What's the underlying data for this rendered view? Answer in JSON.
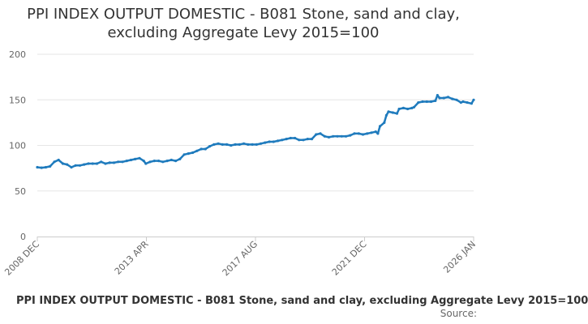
{
  "chart_data": {
    "type": "line",
    "title_line1": "PPI INDEX OUTPUT DOMESTIC - B081 Stone, sand and clay,",
    "title_line2": "excluding Aggregate Levy 2015=100",
    "xlabel": "",
    "ylabel": "",
    "ylim": [
      0,
      200
    ],
    "yticks": [
      "0",
      "50",
      "100",
      "150",
      "200"
    ],
    "xticks": [
      "2008 DEC",
      "2013 APR",
      "2017 AUG",
      "2021 DEC",
      "2026 JAN"
    ],
    "grid": true,
    "legend": "none",
    "series_color": "#1f7bbd",
    "footer_caption": "PPI INDEX OUTPUT DOMESTIC - B081 Stone, sand and clay, excluding Aggregate Levy 2015=100",
    "source_label": "Source:",
    "series": [
      {
        "points": [
          [
            "2008-12",
            76
          ],
          [
            "2009-02",
            75.5
          ],
          [
            "2009-04",
            76
          ],
          [
            "2009-06",
            77
          ],
          [
            "2009-08",
            82
          ],
          [
            "2009-10",
            84
          ],
          [
            "2009-12",
            80
          ],
          [
            "2010-02",
            79
          ],
          [
            "2010-04",
            76
          ],
          [
            "2010-06",
            78
          ],
          [
            "2010-08",
            78
          ],
          [
            "2010-10",
            79
          ],
          [
            "2010-12",
            80
          ],
          [
            "2011-02",
            80
          ],
          [
            "2011-04",
            80
          ],
          [
            "2011-06",
            82
          ],
          [
            "2011-08",
            80
          ],
          [
            "2011-10",
            81
          ],
          [
            "2011-12",
            81
          ],
          [
            "2012-02",
            82
          ],
          [
            "2012-04",
            82
          ],
          [
            "2012-06",
            83
          ],
          [
            "2012-08",
            84
          ],
          [
            "2012-10",
            85
          ],
          [
            "2012-12",
            86
          ],
          [
            "2013-02",
            83
          ],
          [
            "2013-03",
            80
          ],
          [
            "2013-05",
            82
          ],
          [
            "2013-07",
            83
          ],
          [
            "2013-09",
            83
          ],
          [
            "2013-11",
            82
          ],
          [
            "2014-01",
            83
          ],
          [
            "2014-03",
            84
          ],
          [
            "2014-05",
            83
          ],
          [
            "2014-07",
            85
          ],
          [
            "2014-09",
            90
          ],
          [
            "2014-11",
            91
          ],
          [
            "2015-01",
            92
          ],
          [
            "2015-03",
            94
          ],
          [
            "2015-05",
            96
          ],
          [
            "2015-07",
            96
          ],
          [
            "2015-09",
            99
          ],
          [
            "2015-11",
            101
          ],
          [
            "2016-01",
            102
          ],
          [
            "2016-03",
            101
          ],
          [
            "2016-05",
            101
          ],
          [
            "2016-07",
            100
          ],
          [
            "2016-09",
            101
          ],
          [
            "2016-11",
            101
          ],
          [
            "2017-01",
            102
          ],
          [
            "2017-03",
            101
          ],
          [
            "2017-05",
            101
          ],
          [
            "2017-07",
            101
          ],
          [
            "2017-09",
            102
          ],
          [
            "2017-11",
            103
          ],
          [
            "2018-01",
            104
          ],
          [
            "2018-03",
            104
          ],
          [
            "2018-05",
            105
          ],
          [
            "2018-07",
            106
          ],
          [
            "2018-09",
            107
          ],
          [
            "2018-11",
            108
          ],
          [
            "2019-01",
            108
          ],
          [
            "2019-03",
            106
          ],
          [
            "2019-05",
            106
          ],
          [
            "2019-07",
            107
          ],
          [
            "2019-09",
            107
          ],
          [
            "2019-11",
            112
          ],
          [
            "2020-01",
            113
          ],
          [
            "2020-03",
            110
          ],
          [
            "2020-05",
            109
          ],
          [
            "2020-07",
            110
          ],
          [
            "2020-09",
            110
          ],
          [
            "2020-11",
            110
          ],
          [
            "2021-01",
            110
          ],
          [
            "2021-03",
            111
          ],
          [
            "2021-05",
            113
          ],
          [
            "2021-07",
            113
          ],
          [
            "2021-09",
            112
          ],
          [
            "2021-11",
            113
          ],
          [
            "2022-01",
            114
          ],
          [
            "2022-03",
            115
          ],
          [
            "2022-04",
            113
          ],
          [
            "2022-05",
            121
          ],
          [
            "2022-07",
            125
          ],
          [
            "2022-08",
            133
          ],
          [
            "2022-09",
            137
          ],
          [
            "2022-11",
            136
          ],
          [
            "2023-01",
            135
          ],
          [
            "2023-02",
            140
          ],
          [
            "2023-04",
            141
          ],
          [
            "2023-06",
            140
          ],
          [
            "2023-08",
            141
          ],
          [
            "2023-09",
            142
          ],
          [
            "2023-11",
            147
          ],
          [
            "2024-01",
            148
          ],
          [
            "2024-03",
            148
          ],
          [
            "2024-05",
            148
          ],
          [
            "2024-07",
            149
          ],
          [
            "2024-08",
            155
          ],
          [
            "2024-09",
            152
          ],
          [
            "2024-11",
            152
          ],
          [
            "2025-01",
            153
          ],
          [
            "2025-03",
            151
          ],
          [
            "2025-05",
            150
          ],
          [
            "2025-07",
            147
          ],
          [
            "2025-08",
            148
          ],
          [
            "2025-10",
            147
          ],
          [
            "2025-12",
            146
          ],
          [
            "2026-01",
            150
          ]
        ]
      }
    ]
  }
}
